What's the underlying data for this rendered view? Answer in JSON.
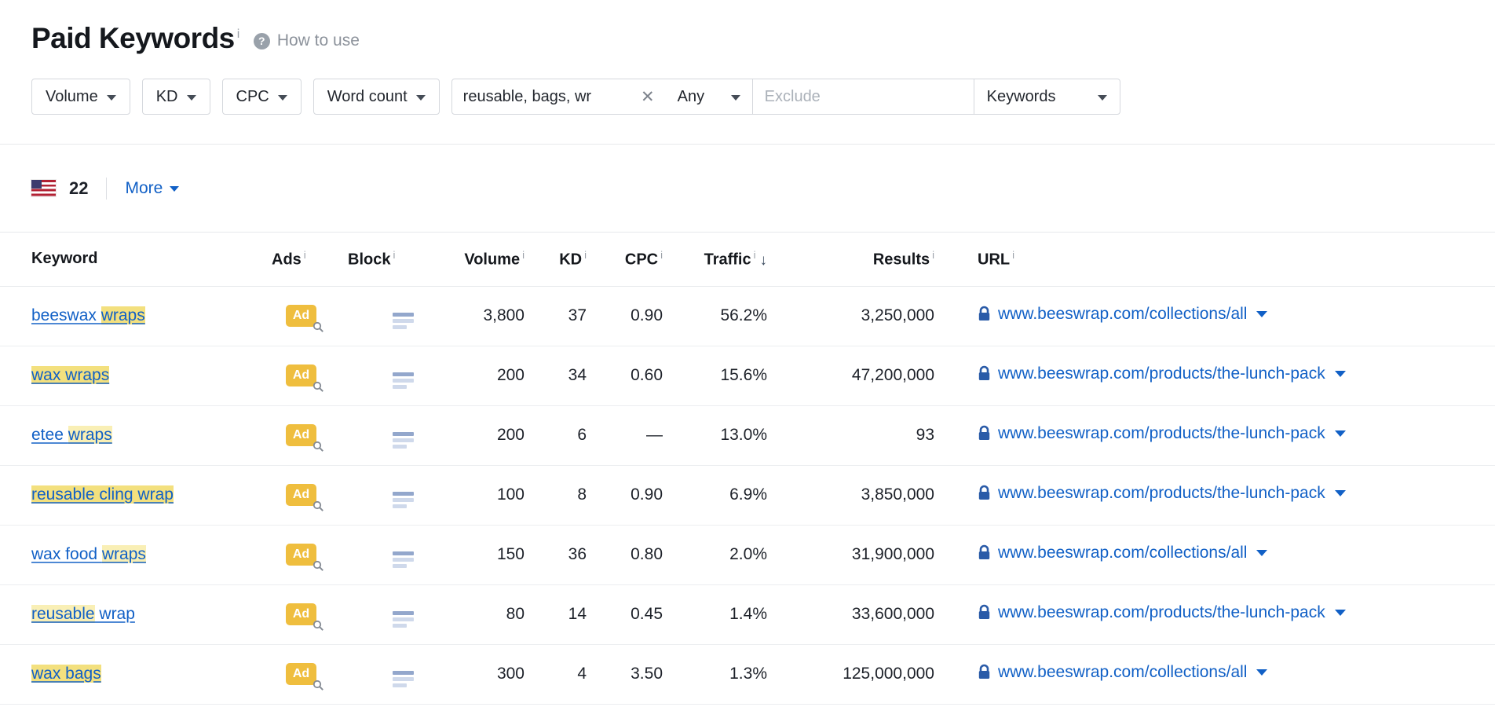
{
  "header": {
    "title": "Paid Keywords",
    "how_to_use": "How to use"
  },
  "glyphs": {
    "info": "i",
    "help": "?",
    "clear": "✕",
    "sort_desc": "↓"
  },
  "labels": {
    "ad": "Ad"
  },
  "filters": {
    "volume": "Volume",
    "kd": "KD",
    "cpc": "CPC",
    "word_count": "Word count",
    "include_value": "reusable, bags, wr",
    "match_mode": "Any",
    "exclude_placeholder": "Exclude",
    "scope": "Keywords"
  },
  "toolbar": {
    "country_flag": "us-flag",
    "count": "22",
    "more": "More"
  },
  "table": {
    "headers": {
      "keyword": "Keyword",
      "ads": "Ads",
      "block": "Block",
      "volume": "Volume",
      "kd": "KD",
      "cpc": "CPC",
      "traffic": "Traffic",
      "results": "Results",
      "url": "URL"
    },
    "rows": [
      {
        "keyword": [
          {
            "t": "beeswax ",
            "h": false
          },
          {
            "t": "wraps",
            "h": true
          }
        ],
        "volume": "3,800",
        "kd": "37",
        "cpc": "0.90",
        "traffic": "56.2%",
        "results": "3,250,000",
        "url": "www.beeswrap.com/collections/all"
      },
      {
        "keyword": [
          {
            "t": "wax wraps",
            "h": true
          }
        ],
        "volume": "200",
        "kd": "34",
        "cpc": "0.60",
        "traffic": "15.6%",
        "results": "47,200,000",
        "url": "www.beeswrap.com/products/the-lunch-pack"
      },
      {
        "keyword": [
          {
            "t": "etee ",
            "h": false
          },
          {
            "t": "wraps",
            "h": "light"
          }
        ],
        "volume": "200",
        "kd": "6",
        "cpc": "—",
        "traffic": "13.0%",
        "results": "93",
        "url": "www.beeswrap.com/products/the-lunch-pack"
      },
      {
        "keyword": [
          {
            "t": "reusable cling wrap",
            "h": true
          }
        ],
        "volume": "100",
        "kd": "8",
        "cpc": "0.90",
        "traffic": "6.9%",
        "results": "3,850,000",
        "url": "www.beeswrap.com/products/the-lunch-pack"
      },
      {
        "keyword": [
          {
            "t": "wax food ",
            "h": false
          },
          {
            "t": "wraps",
            "h": "light"
          }
        ],
        "volume": "150",
        "kd": "36",
        "cpc": "0.80",
        "traffic": "2.0%",
        "results": "31,900,000",
        "url": "www.beeswrap.com/collections/all"
      },
      {
        "keyword": [
          {
            "t": "reusable",
            "h": "light"
          },
          {
            "t": " wrap",
            "h": false
          }
        ],
        "volume": "80",
        "kd": "14",
        "cpc": "0.45",
        "traffic": "1.4%",
        "results": "33,600,000",
        "url": "www.beeswrap.com/products/the-lunch-pack"
      },
      {
        "keyword": [
          {
            "t": "wax bags",
            "h": true
          }
        ],
        "volume": "300",
        "kd": "4",
        "cpc": "3.50",
        "traffic": "1.3%",
        "results": "125,000,000",
        "url": "www.beeswrap.com/collections/all"
      }
    ]
  }
}
